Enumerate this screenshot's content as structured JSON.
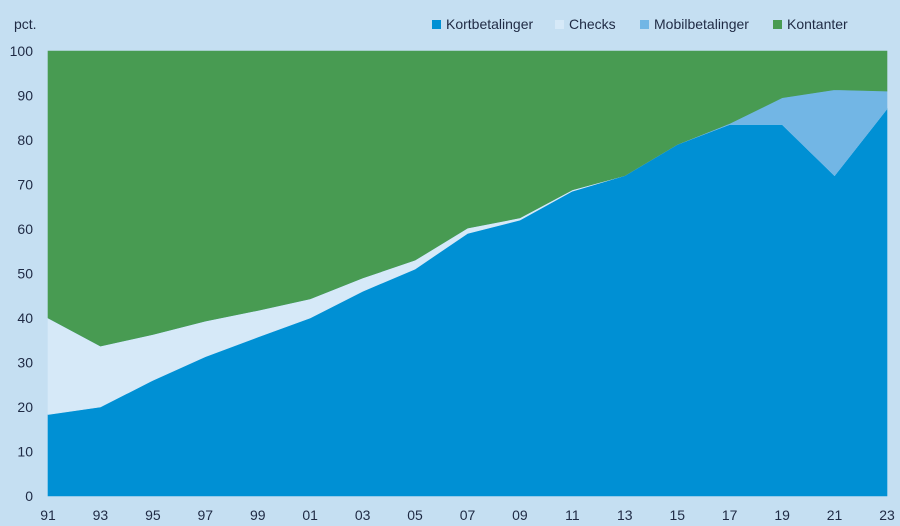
{
  "chart_data": {
    "type": "area",
    "stacked": true,
    "ylabel": "pct.",
    "ylim": [
      0,
      100
    ],
    "yticks": [
      0,
      10,
      20,
      30,
      40,
      50,
      60,
      70,
      80,
      90,
      100
    ],
    "x": [
      1991,
      1993,
      1995,
      1997,
      1999,
      2001,
      2003,
      2005,
      2007,
      2009,
      2011,
      2013,
      2015,
      2017,
      2019,
      2021,
      2023
    ],
    "xtick_labels": [
      "91",
      "93",
      "95",
      "97",
      "99",
      "01",
      "03",
      "05",
      "07",
      "09",
      "11",
      "13",
      "15",
      "17",
      "19",
      "21",
      "23"
    ],
    "grid": false,
    "legend_position": "top-right",
    "series": [
      {
        "name": "Kortbetalinger",
        "color": "#0090d4",
        "values": [
          18.3,
          20.0,
          26.0,
          31.3,
          35.7,
          40.0,
          46.0,
          51.0,
          59.0,
          62.0,
          68.5,
          72.0,
          79.0,
          83.5,
          83.5,
          72.0,
          87.0
        ]
      },
      {
        "name": "Checks",
        "color": "#d6e9f8",
        "values": [
          21.7,
          13.7,
          10.3,
          8.0,
          6.0,
          4.3,
          3.0,
          2.0,
          1.2,
          0.5,
          0.3,
          0.0,
          0.0,
          0.0,
          0.0,
          0.0,
          0.0
        ]
      },
      {
        "name": "Mobilbetalinger",
        "color": "#72b6e5",
        "values": [
          0,
          0,
          0,
          0,
          0,
          0,
          0,
          0,
          0,
          0,
          0,
          0,
          0,
          0.2,
          6.0,
          19.3,
          4.0
        ]
      },
      {
        "name": "Kontanter",
        "color": "#489b52",
        "values": [
          60.0,
          66.3,
          63.7,
          60.7,
          58.3,
          55.7,
          51.0,
          47.0,
          39.8,
          37.5,
          31.2,
          28.0,
          21.0,
          16.3,
          10.5,
          8.7,
          9.0
        ]
      }
    ]
  }
}
